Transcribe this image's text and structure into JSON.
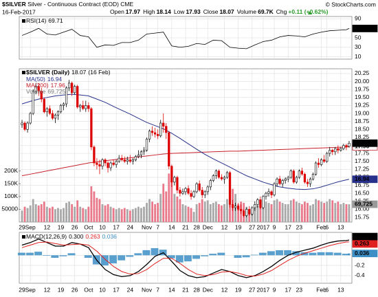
{
  "header": {
    "symbol": "$SILVER",
    "description": "Silver - Continuous Contract (EOD) CME",
    "source": "© StockCharts.com",
    "date": "16-Feb-2017",
    "stat_labels": [
      "Open",
      "High",
      "Low",
      "Close",
      "Volume",
      "Chg"
    ],
    "volume": "69.7K",
    "change": "+0.11 (+0.62%)"
  },
  "chart_data": {
    "type": "candlestick",
    "title": "$SILVER (Daily)",
    "date_label": "(16 Feb)",
    "xlim": [
      -1,
      119
    ],
    "xticks": [
      {
        "value": 0,
        "label": "29"
      },
      {
        "value": 3,
        "label": "Sep"
      },
      {
        "value": 9,
        "label": "12"
      },
      {
        "value": 14,
        "label": "19"
      },
      {
        "value": 19,
        "label": "26"
      },
      {
        "value": 24,
        "label": "Oct"
      },
      {
        "value": 29,
        "label": "10"
      },
      {
        "value": 34,
        "label": "17"
      },
      {
        "value": 39,
        "label": "24"
      },
      {
        "value": 45,
        "label": "Nov"
      },
      {
        "value": 49,
        "label": "7"
      },
      {
        "value": 54,
        "label": "14"
      },
      {
        "value": 59,
        "label": "21"
      },
      {
        "value": 63,
        "label": "28"
      },
      {
        "value": 67,
        "label": "Dec"
      },
      {
        "value": 73,
        "label": "12"
      },
      {
        "value": 78,
        "label": "19"
      },
      {
        "value": 83,
        "label": "27"
      },
      {
        "value": 87,
        "label": "2017"
      },
      {
        "value": 91,
        "label": "9"
      },
      {
        "value": 96,
        "label": "17"
      },
      {
        "value": 100,
        "label": "23"
      },
      {
        "value": 108,
        "label": "Feb"
      },
      {
        "value": 110,
        "label": "6"
      },
      {
        "value": 115,
        "label": "13"
      }
    ],
    "ylim": [
      15.6,
      20.4
    ],
    "yticks": [
      15.75,
      {
        "value": 16,
        "label": "16.00"
      },
      16.25,
      {
        "value": 16.5,
        "label": "16.50"
      },
      16.75,
      {
        "value": 17,
        "label": "17.00"
      },
      17.25,
      {
        "value": 17.5,
        "label": "17.50"
      },
      17.75,
      {
        "value": 18,
        "label": "18.00"
      },
      18.25,
      {
        "value": 18.5,
        "label": "18.50"
      },
      18.75,
      {
        "value": 19,
        "label": "19.00"
      },
      19.25,
      {
        "value": 19.5,
        "label": "19.50"
      },
      19.75,
      {
        "value": 20,
        "label": "20.00"
      },
      20.25
    ],
    "up_color": "#000000",
    "down_color": "#dd0000",
    "candles": [
      [
        18.65,
        18.8,
        18.55,
        18.7
      ],
      [
        18.7,
        18.75,
        18.45,
        18.5
      ],
      [
        18.5,
        18.75,
        18.4,
        18.7
      ],
      [
        18.7,
        19.05,
        18.65,
        19.0
      ],
      [
        19.0,
        19.75,
        18.95,
        19.7
      ],
      [
        19.7,
        19.95,
        19.6,
        19.85
      ],
      [
        19.85,
        19.95,
        19.55,
        19.7
      ],
      [
        19.7,
        19.8,
        19.35,
        19.45
      ],
      [
        19.45,
        19.5,
        19.0,
        19.05
      ],
      [
        19.05,
        19.2,
        18.9,
        19.15
      ],
      [
        19.15,
        19.25,
        18.95,
        19.0
      ],
      [
        19.0,
        19.1,
        18.8,
        18.85
      ],
      [
        18.85,
        19.0,
        18.7,
        18.95
      ],
      [
        18.95,
        19.1,
        18.8,
        19.05
      ],
      [
        19.05,
        19.3,
        19.0,
        19.25
      ],
      [
        19.25,
        19.35,
        19.1,
        19.3
      ],
      [
        19.3,
        19.85,
        19.2,
        19.8
      ],
      [
        19.8,
        20.05,
        19.7,
        19.95
      ],
      [
        19.95,
        20.0,
        19.55,
        19.65
      ],
      [
        19.65,
        19.9,
        19.6,
        19.85
      ],
      [
        19.85,
        19.9,
        19.15,
        19.2
      ],
      [
        19.2,
        19.3,
        19.05,
        19.25
      ],
      [
        19.25,
        19.4,
        19.1,
        19.15
      ],
      [
        19.15,
        19.4,
        19.05,
        19.25
      ],
      [
        19.25,
        19.35,
        19.05,
        19.15
      ],
      [
        19.15,
        19.2,
        17.85,
        17.95
      ],
      [
        17.95,
        18.0,
        17.35,
        17.45
      ],
      [
        17.45,
        17.6,
        17.25,
        17.4
      ],
      [
        17.4,
        17.55,
        17.1,
        17.35
      ],
      [
        17.35,
        17.6,
        17.25,
        17.55
      ],
      [
        17.55,
        17.6,
        17.35,
        17.45
      ],
      [
        17.45,
        17.5,
        17.15,
        17.3
      ],
      [
        17.3,
        17.5,
        17.2,
        17.45
      ],
      [
        17.45,
        17.55,
        17.35,
        17.4
      ],
      [
        17.4,
        17.55,
        17.3,
        17.5
      ],
      [
        17.5,
        17.7,
        17.45,
        17.6
      ],
      [
        17.6,
        17.7,
        17.5,
        17.55
      ],
      [
        17.55,
        17.65,
        17.45,
        17.5
      ],
      [
        17.5,
        17.65,
        17.4,
        17.55
      ],
      [
        17.55,
        17.7,
        17.45,
        17.5
      ],
      [
        17.5,
        17.6,
        17.4,
        17.55
      ],
      [
        17.55,
        17.7,
        17.5,
        17.65
      ],
      [
        17.65,
        17.85,
        17.6,
        17.7
      ],
      [
        17.7,
        17.85,
        17.6,
        17.8
      ],
      [
        17.8,
        17.95,
        17.7,
        17.85
      ],
      [
        17.85,
        18.25,
        17.8,
        18.2
      ],
      [
        18.2,
        18.5,
        18.1,
        18.45
      ],
      [
        18.45,
        18.6,
        18.3,
        18.4
      ],
      [
        18.4,
        18.55,
        18.25,
        18.35
      ],
      [
        18.35,
        18.5,
        18.2,
        18.3
      ],
      [
        18.3,
        18.8,
        18.25,
        18.7
      ],
      [
        18.7,
        19.0,
        18.4,
        18.6
      ],
      [
        18.6,
        18.7,
        18.2,
        18.4
      ],
      [
        18.4,
        18.45,
        17.25,
        17.35
      ],
      [
        17.35,
        17.4,
        16.7,
        16.85
      ],
      [
        16.85,
        17.05,
        16.75,
        17.0
      ],
      [
        17.0,
        17.05,
        16.5,
        16.6
      ],
      [
        16.6,
        16.7,
        16.4,
        16.5
      ],
      [
        16.5,
        16.65,
        16.45,
        16.55
      ],
      [
        16.55,
        16.7,
        16.45,
        16.65
      ],
      [
        16.65,
        16.75,
        16.45,
        16.5
      ],
      [
        16.5,
        16.6,
        16.3,
        16.4
      ],
      [
        16.4,
        16.6,
        16.35,
        16.55
      ],
      [
        16.55,
        16.85,
        16.5,
        16.8
      ],
      [
        16.8,
        16.9,
        16.55,
        16.6
      ],
      [
        16.6,
        16.7,
        16.35,
        16.45
      ],
      [
        16.45,
        16.6,
        16.35,
        16.55
      ],
      [
        16.55,
        16.75,
        16.45,
        16.7
      ],
      [
        16.7,
        16.95,
        16.6,
        16.9
      ],
      [
        16.9,
        17.1,
        16.85,
        17.05
      ],
      [
        17.05,
        17.25,
        16.95,
        17.2
      ],
      [
        17.2,
        17.25,
        16.95,
        17.0
      ],
      [
        17.0,
        17.1,
        16.9,
        16.95
      ],
      [
        16.95,
        17.05,
        16.8,
        17.0
      ],
      [
        17.0,
        17.2,
        16.95,
        17.15
      ],
      [
        17.15,
        17.2,
        16.05,
        16.15
      ],
      [
        16.15,
        16.3,
        15.95,
        16.05
      ],
      [
        16.05,
        16.2,
        15.95,
        16.1
      ],
      [
        16.1,
        16.2,
        15.95,
        16.0
      ],
      [
        16.0,
        16.15,
        15.85,
        15.95
      ],
      [
        15.95,
        16.0,
        15.75,
        15.8
      ],
      [
        15.8,
        16.05,
        15.75,
        16.0
      ],
      [
        16.0,
        16.1,
        15.8,
        15.85
      ],
      [
        15.85,
        16.1,
        15.8,
        16.05
      ],
      [
        16.05,
        16.25,
        15.95,
        16.15
      ],
      [
        16.15,
        16.35,
        16.05,
        16.3
      ],
      [
        16.3,
        16.4,
        16.0,
        16.05
      ],
      [
        16.05,
        16.45,
        16.0,
        16.4
      ],
      [
        16.4,
        16.55,
        16.3,
        16.5
      ],
      [
        16.5,
        16.65,
        16.4,
        16.55
      ],
      [
        16.55,
        16.6,
        16.35,
        16.45
      ],
      [
        16.45,
        16.85,
        16.4,
        16.8
      ],
      [
        16.8,
        17.0,
        16.7,
        16.95
      ],
      [
        16.95,
        17.05,
        16.75,
        16.8
      ],
      [
        16.8,
        16.95,
        16.7,
        16.9
      ],
      [
        16.9,
        17.0,
        16.8,
        16.95
      ],
      [
        16.95,
        17.05,
        16.85,
        17.0
      ],
      [
        17.0,
        17.25,
        16.95,
        17.2
      ],
      [
        17.2,
        17.25,
        16.8,
        16.85
      ],
      [
        16.85,
        17.05,
        16.8,
        17.0
      ],
      [
        17.0,
        17.25,
        16.95,
        17.2
      ],
      [
        17.2,
        17.3,
        17.05,
        17.1
      ],
      [
        17.1,
        17.15,
        16.8,
        16.85
      ],
      [
        16.85,
        16.95,
        16.7,
        16.8
      ],
      [
        16.8,
        17.0,
        16.7,
        16.95
      ],
      [
        16.95,
        17.15,
        16.9,
        17.1
      ],
      [
        17.1,
        17.5,
        17.05,
        17.45
      ],
      [
        17.45,
        17.6,
        17.3,
        17.4
      ],
      [
        17.4,
        17.6,
        17.35,
        17.55
      ],
      [
        17.55,
        17.7,
        17.45,
        17.5
      ],
      [
        17.5,
        17.8,
        17.45,
        17.75
      ],
      [
        17.75,
        17.95,
        17.65,
        17.85
      ],
      [
        17.85,
        17.9,
        17.7,
        17.8
      ],
      [
        17.8,
        17.95,
        17.7,
        17.9
      ],
      [
        17.9,
        18.0,
        17.75,
        17.85
      ],
      [
        17.85,
        17.95,
        17.8,
        17.9
      ],
      [
        17.9,
        18.05,
        17.85,
        18.0
      ],
      [
        18.0,
        18.05,
        17.85,
        17.95
      ],
      [
        17.97,
        18.14,
        17.93,
        18.07
      ]
    ],
    "volume": {
      "name": "Volume",
      "last_label": "69,725",
      "color": "#a8a8a8",
      "down_color": "#e8788a",
      "ylim": [
        0,
        600000
      ],
      "ticks": [
        {
          "value": 200000,
          "label": "200K"
        },
        {
          "value": 150000,
          "label": "150K"
        },
        {
          "value": 100000,
          "label": "100K"
        },
        50000
      ],
      "values": [
        45000,
        60000,
        55000,
        65000,
        90000,
        70000,
        65000,
        70000,
        80000,
        60000,
        55000,
        60000,
        50000,
        55000,
        50000,
        55000,
        75000,
        80000,
        70000,
        60000,
        85000,
        60000,
        55000,
        50000,
        60000,
        140000,
        120000,
        95000,
        90000,
        70000,
        65000,
        70000,
        60000,
        55000,
        50000,
        55000,
        50000,
        55000,
        50000,
        45000,
        50000,
        55000,
        60000,
        55000,
        60000,
        75000,
        90000,
        80000,
        70000,
        75000,
        110000,
        150000,
        120000,
        190000,
        160000,
        110000,
        100000,
        90000,
        70000,
        65000,
        60000,
        55000,
        40000,
        70000,
        75000,
        90000,
        80000,
        85000,
        70000,
        75000,
        80000,
        70000,
        65000,
        70000,
        90000,
        150000,
        130000,
        110000,
        70000,
        80000,
        75000,
        60000,
        50000,
        55000,
        60000,
        65000,
        60000,
        85000,
        80000,
        75000,
        70000,
        85000,
        90000,
        80000,
        75000,
        70000,
        70000,
        85000,
        90000,
        80000,
        75000,
        70000,
        80000,
        75000,
        65000,
        70000,
        90000,
        85000,
        80000,
        75000,
        80000,
        90000,
        85000,
        75000,
        80000,
        70000,
        75000,
        70000,
        69725
      ]
    },
    "sample_x": [
      0,
      3,
      6,
      9,
      12,
      15,
      18,
      21,
      24,
      27,
      30,
      33,
      36,
      39,
      42,
      45,
      48,
      51,
      54,
      57,
      60,
      63,
      66,
      69,
      72,
      75,
      78,
      81,
      84,
      87,
      90,
      93,
      96,
      99,
      102,
      105,
      108,
      111,
      114,
      117,
      118
    ],
    "ma50": {
      "name": "MA(50)",
      "color": "#27318b",
      "values": [
        19.3,
        19.38,
        19.45,
        19.5,
        19.55,
        19.58,
        19.6,
        19.58,
        19.55,
        19.45,
        19.35,
        19.22,
        19.1,
        18.98,
        18.85,
        18.72,
        18.62,
        18.52,
        18.38,
        18.22,
        18.05,
        17.88,
        17.72,
        17.58,
        17.45,
        17.32,
        17.18,
        17.05,
        16.95,
        16.85,
        16.77,
        16.7,
        16.66,
        16.63,
        16.62,
        16.64,
        16.7,
        16.78,
        16.86,
        16.92,
        16.94
      ]
    },
    "ma200": {
      "name": "MA(200)",
      "color": "#c8202a",
      "values": [
        17.05,
        17.1,
        17.15,
        17.2,
        17.25,
        17.3,
        17.35,
        17.4,
        17.45,
        17.48,
        17.52,
        17.55,
        17.58,
        17.61,
        17.64,
        17.67,
        17.7,
        17.73,
        17.75,
        17.76,
        17.77,
        17.78,
        17.79,
        17.8,
        17.81,
        17.82,
        17.82,
        17.83,
        17.84,
        17.85,
        17.86,
        17.87,
        17.88,
        17.89,
        17.9,
        17.91,
        17.92,
        17.93,
        17.94,
        17.95,
        17.96
      ]
    },
    "rsi": {
      "name": "RSI(14)",
      "color": "#000000",
      "ylim": [
        5,
        95
      ],
      "yticks": [
        90,
        70,
        50,
        30,
        10
      ],
      "values": [
        55,
        62,
        70,
        58,
        56,
        62,
        68,
        55,
        52,
        30,
        35,
        34,
        40,
        40,
        45,
        58,
        60,
        62,
        33,
        30,
        32,
        38,
        36,
        45,
        44,
        30,
        28,
        27,
        35,
        42,
        45,
        52,
        55,
        54,
        52,
        58,
        62,
        65,
        66,
        67,
        69.71
      ]
    },
    "macd": {
      "name": "MACD(12,26,9)",
      "ylim": [
        -0.55,
        0.45
      ],
      "yticks": [
        0.2,
        {
          "value": 0,
          "label": "0.0"
        },
        -0.2,
        -0.4
      ],
      "series": [
        {
          "kind": "line",
          "color": "#000000",
          "label": "0.300",
          "values": [
            0.2,
            0.25,
            0.32,
            0.25,
            0.18,
            0.18,
            0.25,
            0.22,
            0.15,
            -0.1,
            -0.28,
            -0.38,
            -0.42,
            -0.4,
            -0.32,
            -0.18,
            -0.02,
            0.05,
            -0.12,
            -0.3,
            -0.4,
            -0.44,
            -0.42,
            -0.35,
            -0.28,
            -0.32,
            -0.4,
            -0.44,
            -0.4,
            -0.32,
            -0.22,
            -0.1,
            0.0,
            0.06,
            0.1,
            0.14,
            0.2,
            0.25,
            0.28,
            0.29,
            0.3
          ]
        },
        {
          "kind": "line",
          "color": "#e02020",
          "label": "0.263",
          "values": [
            0.15,
            0.2,
            0.25,
            0.26,
            0.23,
            0.2,
            0.21,
            0.22,
            0.2,
            0.08,
            -0.08,
            -0.22,
            -0.32,
            -0.37,
            -0.36,
            -0.28,
            -0.16,
            -0.06,
            -0.06,
            -0.16,
            -0.28,
            -0.37,
            -0.4,
            -0.38,
            -0.33,
            -0.32,
            -0.35,
            -0.4,
            -0.41,
            -0.37,
            -0.3,
            -0.2,
            -0.1,
            -0.02,
            0.04,
            0.09,
            0.14,
            0.19,
            0.23,
            0.26,
            0.263
          ]
        },
        {
          "kind": "histogram",
          "color": "#3d8fc6",
          "label": "0.036",
          "values": [
            0.05,
            0.05,
            0.07,
            -0.01,
            -0.05,
            -0.02,
            0.04,
            0.0,
            -0.05,
            -0.18,
            -0.2,
            -0.16,
            -0.1,
            -0.03,
            0.04,
            0.1,
            0.14,
            0.11,
            -0.06,
            -0.14,
            -0.12,
            -0.07,
            -0.02,
            0.03,
            0.05,
            0.0,
            -0.05,
            -0.04,
            0.01,
            0.05,
            0.08,
            0.1,
            0.1,
            0.08,
            0.06,
            0.05,
            0.06,
            0.06,
            0.05,
            0.03,
            0.036
          ]
        }
      ]
    }
  }
}
